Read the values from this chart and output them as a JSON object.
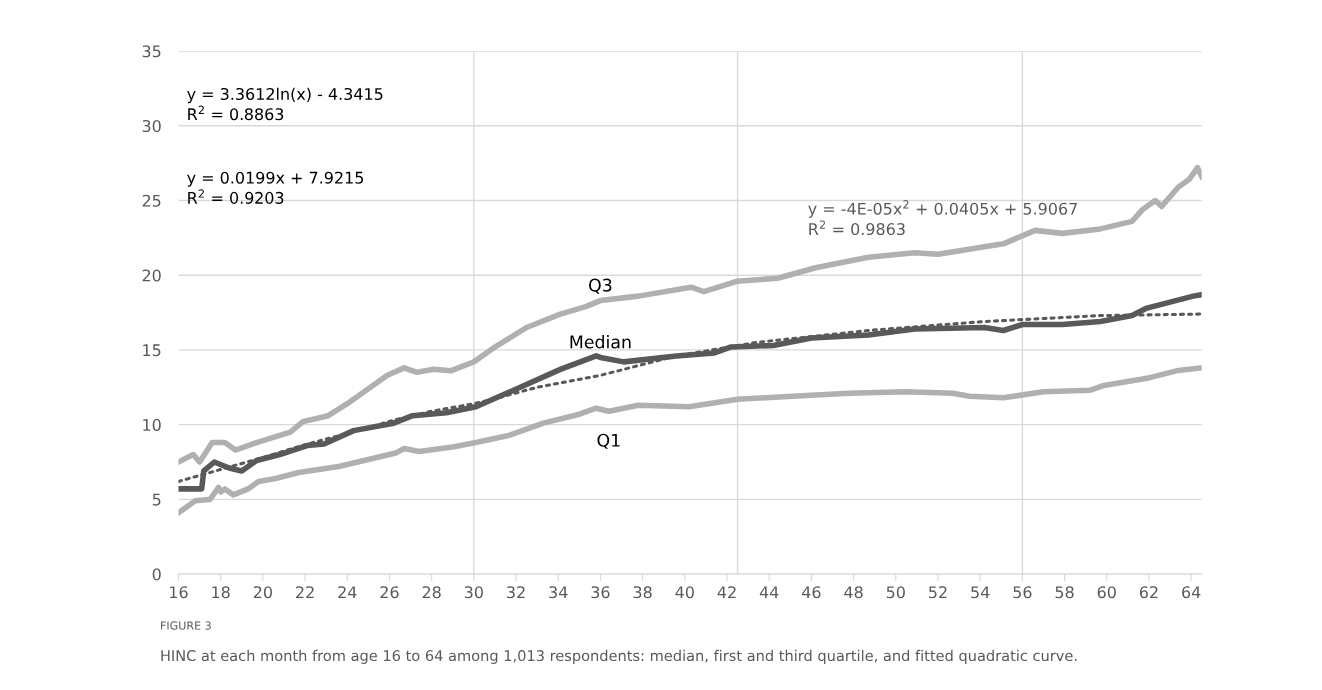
{
  "chart_data": {
    "type": "line",
    "annotations": [
      "y = 3.3612ln(x) - 4.3415\nR$^{2}$ = 0.8863",
      "y = 0.0199x + 7.9215\nR$^{2}$ = 0.9203",
      "y = -4E-05x$^{2}$ + 0.0405x + 5.9067\nR$^{2}$ = 0.9863",
      "FIGURE 3",
      "HINC at each month from age 16 to 64 among 1,013 respondents: median, first and third quartile, and fitted quadratic curve."
    ],
    "series": [
      {
        "name": "Q3",
        "color": "#b0b0b0",
        "x": [
          16,
          16.7,
          17.0,
          17.6,
          18.2,
          18.7,
          19.7,
          21.3,
          21.9,
          23.1,
          24.0,
          24.9,
          25.9,
          26.7,
          27.3,
          28.1,
          28.9,
          30.0,
          30.9,
          32.5,
          34.1,
          35.3,
          36.0,
          37.8,
          40.3,
          40.9,
          42.5,
          44.4,
          46.2,
          48.7,
          50.9,
          52.0,
          54.2,
          55.1,
          56.6,
          57.9,
          59.7,
          61.2,
          61.7,
          62.3,
          62.6,
          63.4,
          63.9,
          64.3,
          64.5
        ],
        "values": [
          7.5,
          8.0,
          7.5,
          8.8,
          8.8,
          8.3,
          8.8,
          9.5,
          10.2,
          10.6,
          11.4,
          12.3,
          13.3,
          13.8,
          13.5,
          13.7,
          13.6,
          14.2,
          15.1,
          16.5,
          17.4,
          17.9,
          18.3,
          18.6,
          19.2,
          18.9,
          19.6,
          19.8,
          20.5,
          21.2,
          21.5,
          21.4,
          21.9,
          22.1,
          23.0,
          22.8,
          23.1,
          23.6,
          24.4,
          25.0,
          24.6,
          25.9,
          26.4,
          27.2,
          26.6
        ]
      },
      {
        "name": "Median",
        "color": "#595959",
        "x": [
          16,
          17.1,
          17.2,
          17.7,
          18.4,
          19.0,
          19.7,
          20.8,
          22.1,
          22.9,
          24.3,
          26.2,
          27.1,
          28.7,
          30.1,
          32.2,
          34.1,
          35.8,
          36.0,
          37.1,
          39.6,
          41.4,
          42.2,
          44.2,
          46.0,
          48.7,
          50.9,
          54.2,
          55.1,
          56.0,
          57.9,
          59.7,
          61.2,
          61.9,
          63.0,
          64.1,
          64.5
        ],
        "values": [
          5.7,
          5.7,
          6.9,
          7.5,
          7.1,
          6.9,
          7.6,
          8.0,
          8.6,
          8.7,
          9.6,
          10.1,
          10.6,
          10.8,
          11.2,
          12.5,
          13.7,
          14.6,
          14.5,
          14.2,
          14.6,
          14.8,
          15.2,
          15.3,
          15.8,
          16.0,
          16.4,
          16.5,
          16.3,
          16.7,
          16.7,
          16.9,
          17.3,
          17.8,
          18.2,
          18.6,
          18.7
        ]
      },
      {
        "name": "Q1",
        "color": "#b0b0b0",
        "x": [
          16,
          16.8,
          17.5,
          17.9,
          18.0,
          18.2,
          18.6,
          19.3,
          19.8,
          20.6,
          21.7,
          23.6,
          25.1,
          26.3,
          26.7,
          27.4,
          29.0,
          30.1,
          31.7,
          33.3,
          35.0,
          35.8,
          36.4,
          37.1,
          37.8,
          40.2,
          42.5,
          45.1,
          47.8,
          50.5,
          52.7,
          53.5,
          55.1,
          57.0,
          59.2,
          59.8,
          61.9,
          63.3,
          64.5
        ],
        "values": [
          4.1,
          4.9,
          5.0,
          5.8,
          5.5,
          5.7,
          5.3,
          5.7,
          6.2,
          6.4,
          6.8,
          7.2,
          7.7,
          8.1,
          8.4,
          8.2,
          8.5,
          8.8,
          9.3,
          10.1,
          10.7,
          11.1,
          10.9,
          11.1,
          11.3,
          11.2,
          11.7,
          11.9,
          12.1,
          12.2,
          12.1,
          11.9,
          11.8,
          12.2,
          12.3,
          12.6,
          13.1,
          13.6,
          13.8
        ]
      },
      {
        "color": "#595959",
        "line_style": "dotted",
        "x": [
          16,
          18,
          20,
          22.1,
          24,
          26.2,
          28,
          30,
          30.9,
          33,
          36,
          39.6,
          43.4,
          48.7,
          54.2,
          59.7,
          64.5
        ],
        "values": [
          6.2,
          7.0,
          7.8,
          8.7,
          9.4,
          10.3,
          10.9,
          11.4,
          11.7,
          12.5,
          13.3,
          14.6,
          15.5,
          16.3,
          16.9,
          17.3,
          17.4
        ]
      }
    ],
    "xlim": [
      16,
      64.5
    ],
    "xticks": [
      16,
      18,
      20,
      22,
      24,
      26,
      28,
      30,
      32,
      34,
      36,
      38,
      40,
      42,
      44,
      46,
      48,
      50,
      52,
      54,
      56,
      58,
      60,
      62,
      64
    ],
    "ylim": [
      0,
      35
    ],
    "yticks": [
      0,
      5,
      10,
      15,
      20,
      25,
      30,
      35
    ],
    "grid": "y",
    "line_style": "solid",
    "marker": "none",
    "ref_lines": [
      {
        "axis": "x",
        "value": 30,
        "color": "#d9d9d9"
      },
      {
        "axis": "x",
        "value": 42.5,
        "color": "#d9d9d9"
      },
      {
        "axis": "x",
        "value": 56,
        "color": "#d9d9d9"
      }
    ]
  }
}
